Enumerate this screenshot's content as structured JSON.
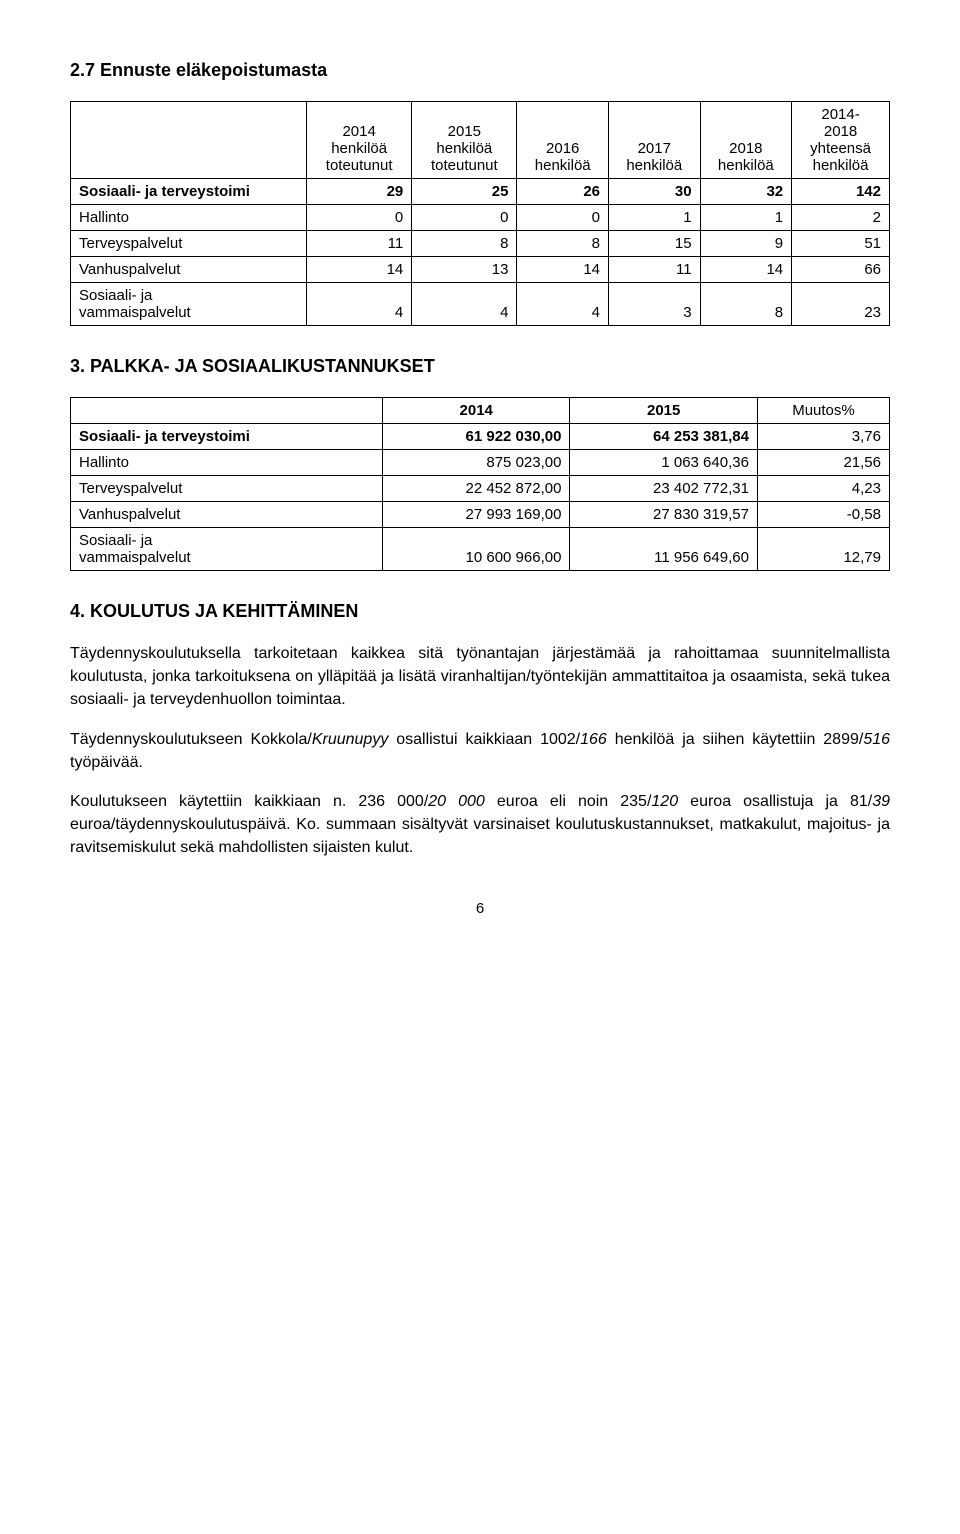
{
  "sections": {
    "s27": {
      "title": "2.7 Ennuste eläkepoistumasta"
    },
    "s3": {
      "title": "3. PALKKA- JA SOSIAALIKUSTANNUKSET"
    },
    "s4": {
      "title": "4. KOULUTUS JA KEHITTÄMINEN",
      "p1": "Täydennyskoulutuksella tarkoitetaan kaikkea sitä työnantajan järjestämää ja rahoittamaa suunnitelmallista koulutusta, jonka tarkoituksena on ylläpitää ja lisätä viranhaltijan/työntekijän ammattitaitoa ja osaamista, sekä tukea sosiaali- ja terveydenhuollon toimintaa.",
      "p2a": "Täydennyskoulutukseen Kokkola/",
      "p2i": "Kruunupyy",
      "p2b": " osallistui kaikkiaan 1002/",
      "p2i2": "166",
      "p2c": " henkilöä ja siihen käytettiin 2899/",
      "p2i3": "516",
      "p2d": " työpäivää.",
      "p3a": "Koulutukseen käytettiin kaikkiaan n. 236 000/",
      "p3i": "20 000",
      "p3b": " euroa eli noin 235/",
      "p3i2": "120",
      "p3c": " euroa osallistuja ja 81/",
      "p3i3": "39",
      "p3d": " euroa/täydennyskoulutuspäivä. Ko. summaan sisältyvät varsinaiset koulutuskustannukset, matkakulut, majoitus- ja ravitsemiskulut sekä mahdollisten sijaisten kulut."
    }
  },
  "table1": {
    "head": {
      "c1": "",
      "c2": "2014\nhenkilöä\ntoteutunut",
      "c3": "2015\nhenkilöä\ntoteutunut",
      "c4": "2016\nhenkilöä",
      "c5": "2017\nhenkilöä",
      "c6": "2018\nhenkilöä",
      "c7": "2014-\n2018\nyhteensä\nhenkilöä"
    },
    "rows": {
      "r1": {
        "label": "Sosiaali- ja terveystoimi",
        "v": [
          "29",
          "25",
          "26",
          "30",
          "32",
          "142"
        ],
        "bold": true
      },
      "r2": {
        "label": "Hallinto",
        "v": [
          "0",
          "0",
          "0",
          "1",
          "1",
          "2"
        ]
      },
      "r3": {
        "label": "Terveyspalvelut",
        "v": [
          "11",
          "8",
          "8",
          "15",
          "9",
          "51"
        ]
      },
      "r4": {
        "label": "Vanhuspalvelut",
        "v": [
          "14",
          "13",
          "14",
          "11",
          "14",
          "66"
        ]
      },
      "r5": {
        "label": "Sosiaali- ja\nvammaispalvelut",
        "v": [
          "4",
          "4",
          "4",
          "3",
          "8",
          "23"
        ]
      }
    }
  },
  "table2": {
    "head": {
      "c1": "",
      "c2": "2014",
      "c3": "2015",
      "c4": "Muutos%"
    },
    "rows": {
      "r1": {
        "label": "Sosiaali- ja terveystoimi",
        "v": [
          "61 922 030,00",
          "64 253 381,84",
          "3,76"
        ],
        "bold": true
      },
      "r2": {
        "label": "Hallinto",
        "v": [
          "875 023,00",
          "1 063 640,36",
          "21,56"
        ]
      },
      "r3": {
        "label": "Terveyspalvelut",
        "v": [
          "22 452 872,00",
          "23 402 772,31",
          "4,23"
        ]
      },
      "r4": {
        "label": "Vanhuspalvelut",
        "v": [
          "27 993 169,00",
          "27 830 319,57",
          "-0,58"
        ]
      },
      "r5": {
        "label": "Sosiaali- ja\nvammaispalvelut",
        "v": [
          "10 600 966,00",
          "11 956 649,60",
          "12,79"
        ]
      }
    }
  },
  "pageNumber": "6"
}
